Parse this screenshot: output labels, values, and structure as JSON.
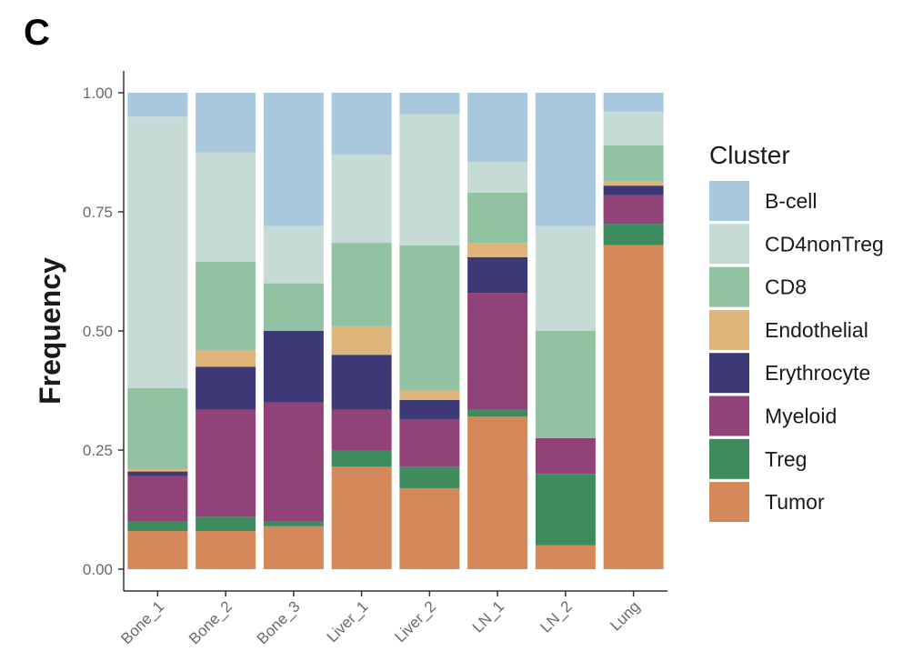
{
  "panel_label": "C",
  "chart_data": {
    "type": "bar",
    "stacked": true,
    "ylabel": "Frequency",
    "xlabel": "",
    "ylim": [
      0,
      1
    ],
    "yticks": [
      0,
      0.25,
      0.5,
      0.75,
      1
    ],
    "ytick_labels": [
      "0.00",
      "0.25",
      "0.50",
      "0.75",
      "1.00"
    ],
    "categories": [
      "Bone_1",
      "Bone_2",
      "Bone_3",
      "Liver_1",
      "Liver_2",
      "LN_1",
      "LN_2",
      "Lung"
    ],
    "legend_title": "Cluster",
    "legend_position": "right",
    "series": [
      {
        "name": "Tumor",
        "color": "#d5895a",
        "values": [
          0.08,
          0.08,
          0.09,
          0.215,
          0.17,
          0.32,
          0.05,
          0.68
        ]
      },
      {
        "name": "Treg",
        "color": "#3e8c5e",
        "values": [
          0.02,
          0.03,
          0.01,
          0.035,
          0.045,
          0.015,
          0.15,
          0.045
        ]
      },
      {
        "name": "Myeloid",
        "color": "#904279",
        "values": [
          0.095,
          0.225,
          0.25,
          0.085,
          0.1,
          0.245,
          0.075,
          0.06
        ]
      },
      {
        "name": "Erythrocyte",
        "color": "#3d3876",
        "values": [
          0.01,
          0.09,
          0.15,
          0.115,
          0.04,
          0.075,
          0.0,
          0.02
        ]
      },
      {
        "name": "Endothelial",
        "color": "#dfb57b",
        "values": [
          0.005,
          0.035,
          0.0,
          0.06,
          0.02,
          0.03,
          0.0,
          0.01
        ]
      },
      {
        "name": "CD8",
        "color": "#91c3a2",
        "values": [
          0.17,
          0.185,
          0.1,
          0.175,
          0.305,
          0.105,
          0.225,
          0.075
        ]
      },
      {
        "name": "CD4nonTreg",
        "color": "#c7dbd6",
        "values": [
          0.57,
          0.23,
          0.12,
          0.185,
          0.275,
          0.065,
          0.22,
          0.07
        ]
      },
      {
        "name": "B-cell",
        "color": "#a8c8de",
        "values": [
          0.05,
          0.125,
          0.28,
          0.13,
          0.045,
          0.145,
          0.28,
          0.04
        ]
      }
    ],
    "legend_order": [
      "B-cell",
      "CD4nonTreg",
      "CD8",
      "Endothelial",
      "Erythrocyte",
      "Myeloid",
      "Treg",
      "Tumor"
    ]
  }
}
